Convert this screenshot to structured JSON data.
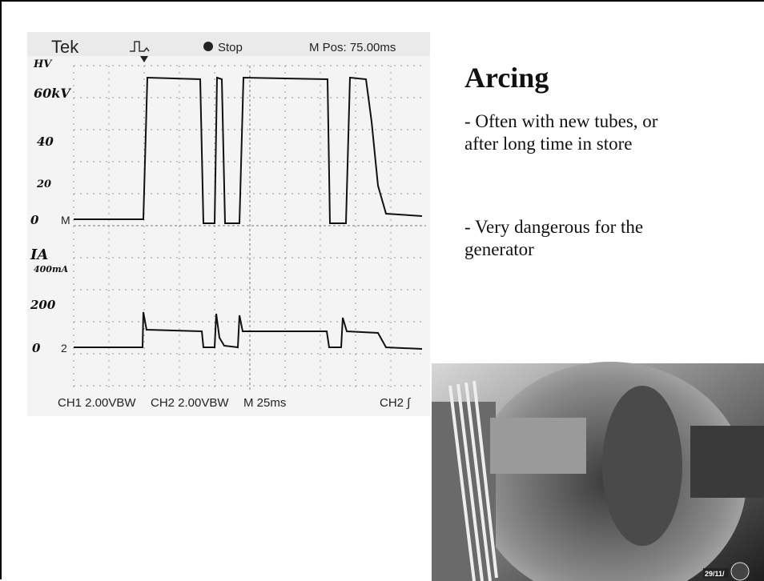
{
  "slide": {
    "title": "Arcing",
    "bullets": [
      "- Often with new tubes, or after long time in store",
      "- Very dangerous for the generator"
    ],
    "scope": {
      "brand": "Tek",
      "status": "Stop",
      "position": "M Pos: 75.00ms",
      "hv_label": "HV",
      "hv_ticks": [
        "60kV",
        "40",
        "20",
        "0"
      ],
      "ch1_marker": "M",
      "current_label": "IA",
      "current_unit": "400mA",
      "current_ticks": [
        "200",
        "0"
      ],
      "ch2_marker": "2",
      "footer": [
        "CH1 2.00VBW",
        "CH2 2.00VBW",
        "M 25ms",
        "CH2 ∫"
      ]
    },
    "photo_date": "29/11/"
  }
}
